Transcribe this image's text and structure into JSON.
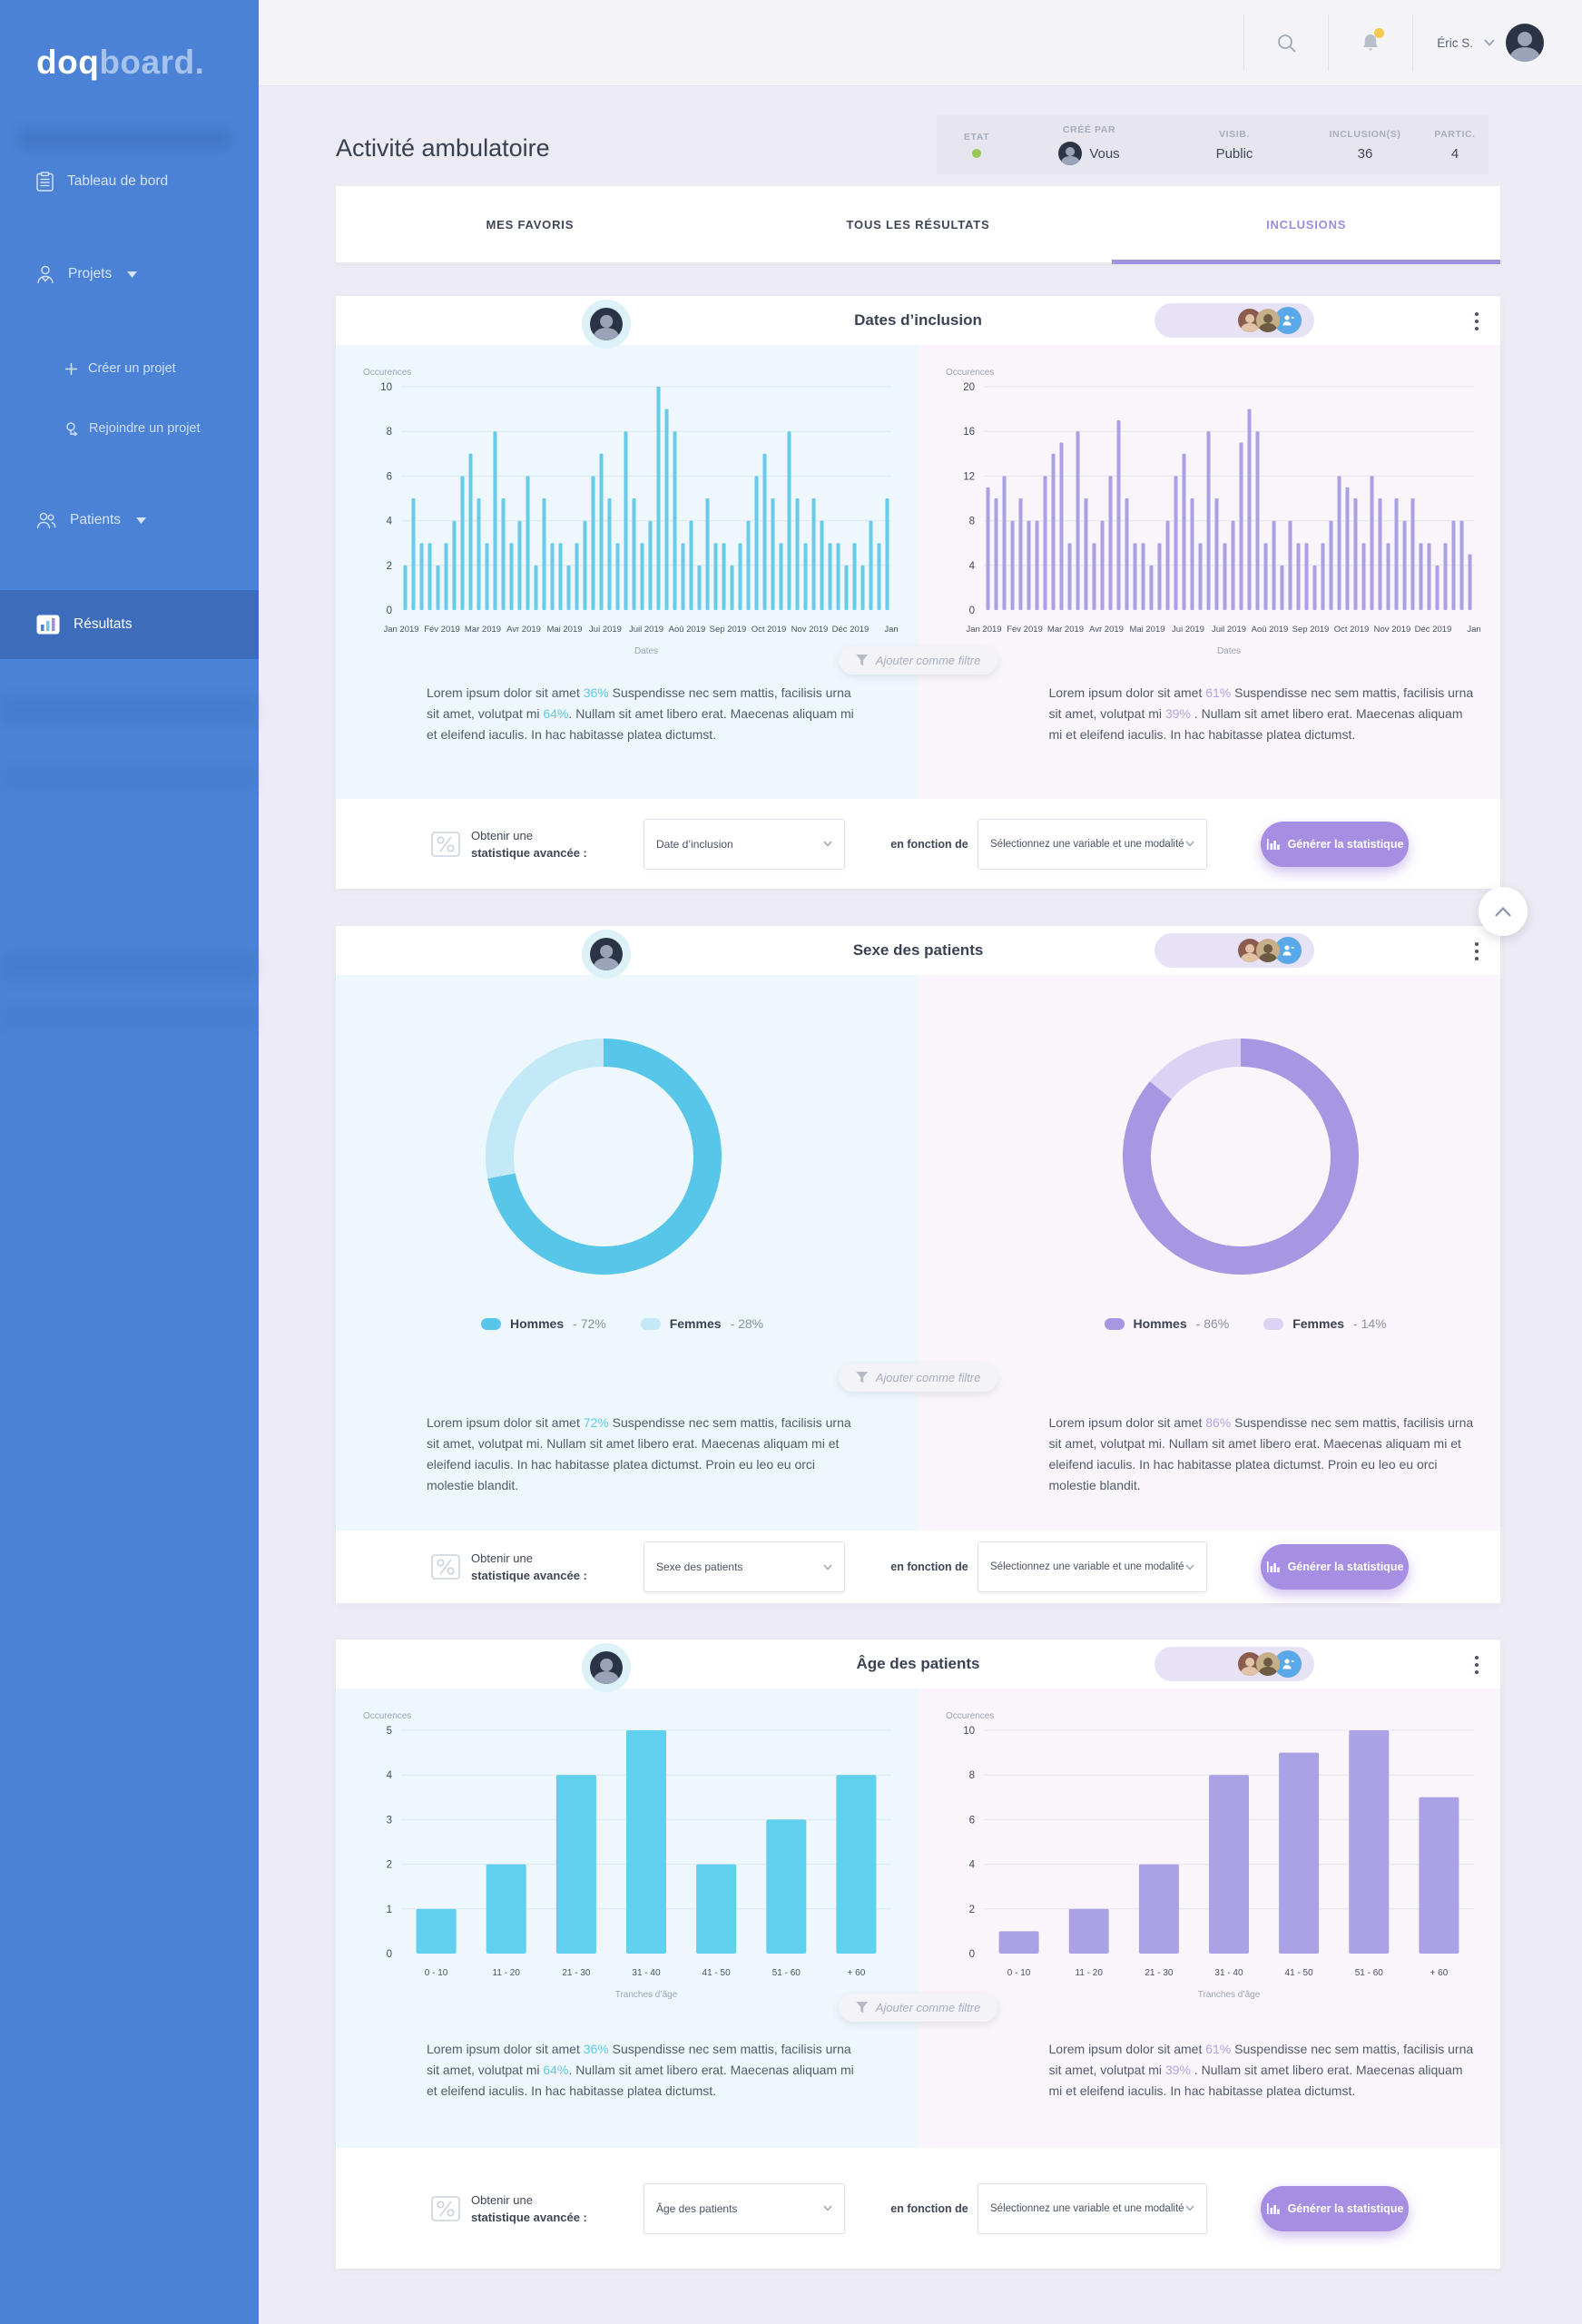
{
  "sidebar": {
    "logo": {
      "part1": "doq",
      "part2": "board."
    },
    "items": [
      {
        "label": "Tableau de bord"
      },
      {
        "label": "Projets"
      },
      {
        "label": "Créer un projet"
      },
      {
        "label": "Rejoindre un projet"
      },
      {
        "label": "Patients"
      },
      {
        "label": "Résultats"
      }
    ]
  },
  "topbar": {
    "user_name": "Éric S."
  },
  "page": {
    "title": "Activité ambulatoire"
  },
  "meta": [
    {
      "label": "ETAT",
      "value": ""
    },
    {
      "label": "CRÉÉ PAR",
      "value": "Vous"
    },
    {
      "label": "VISIB.",
      "value": "Public"
    },
    {
      "label": "INCLUSION(S)",
      "value": "36"
    },
    {
      "label": "PARTIC.",
      "value": "4"
    }
  ],
  "tabs": [
    {
      "label": "MES FAVORIS"
    },
    {
      "label": "TOUS LES RÉSULTATS"
    },
    {
      "label": "INCLUSIONS"
    }
  ],
  "cards": [
    {
      "title": "Dates d’inclusion",
      "filter_label": "Ajouter comme filtre",
      "left_text": [
        {
          "t": "Lorem ipsum dolor sit amet "
        },
        {
          "t": "36%",
          "hl": true
        },
        {
          "t": "  Suspendisse nec sem mattis, facilisis urna sit amet, volutpat mi "
        },
        {
          "t": "64%",
          "hl": true
        },
        {
          "t": ". Nullam sit amet libero erat. Maecenas aliquam mi et eleifend iaculis. In hac habitasse platea dictumst."
        }
      ],
      "right_text": [
        {
          "t": "Lorem ipsum dolor sit amet "
        },
        {
          "t": "61%",
          "hl": true
        },
        {
          "t": "  Suspendisse nec sem mattis, facilisis urna sit amet, volutpat mi "
        },
        {
          "t": "39%",
          "hl": true
        },
        {
          "t": " . Nullam sit amet libero erat. Maecenas aliquam mi et eleifend iaculis. In hac habitasse platea dictumst."
        }
      ],
      "foot": {
        "label1": "Obtenir une",
        "label2": "statistique avancée :",
        "select1": "Date d’inclusion",
        "between": "en fonction de",
        "select2": "Sélectionnez une variable et une modalité",
        "button": "Générer la statistique"
      }
    },
    {
      "title": "Sexe des patients",
      "filter_label": "Ajouter comme filtre",
      "legends": {
        "left": [
          {
            "name": "Hommes",
            "value": "- 72%"
          },
          {
            "name": "Femmes",
            "value": "- 28%"
          }
        ],
        "right": [
          {
            "name": "Hommes",
            "value": "- 86%"
          },
          {
            "name": "Femmes",
            "value": "- 14%"
          }
        ]
      },
      "left_text": [
        {
          "t": "Lorem ipsum dolor sit amet "
        },
        {
          "t": "72%",
          "hl": true
        },
        {
          "t": "  Suspendisse nec sem mattis, facilisis urna sit amet, volutpat mi. Nullam sit amet libero erat. Maecenas aliquam mi et eleifend iaculis. In hac habitasse platea dictumst. Proin eu leo eu orci molestie blandit."
        }
      ],
      "right_text": [
        {
          "t": "Lorem ipsum dolor sit amet "
        },
        {
          "t": "86%",
          "hl": true
        },
        {
          "t": "  Suspendisse nec sem mattis, facilisis urna sit amet, volutpat mi. Nullam sit amet libero erat. Maecenas aliquam mi et eleifend iaculis. In hac habitasse platea dictumst. Proin eu leo eu orci molestie blandit."
        }
      ],
      "foot": {
        "label1": "Obtenir une",
        "label2": "statistique avancée :",
        "select1": "Sexe des patients",
        "between": "en fonction de",
        "select2": "Sélectionnez une variable et une modalité",
        "button": "Générer la statistique"
      }
    },
    {
      "title": "Âge des patients",
      "filter_label": "Ajouter comme filtre",
      "left_text": [
        {
          "t": "Lorem ipsum dolor sit amet "
        },
        {
          "t": "36%",
          "hl": true
        },
        {
          "t": "  Suspendisse nec sem mattis, facilisis urna sit amet, volutpat mi "
        },
        {
          "t": "64%",
          "hl": true
        },
        {
          "t": ". Nullam sit amet libero erat. Maecenas aliquam mi et eleifend iaculis. In hac habitasse platea dictumst."
        }
      ],
      "right_text": [
        {
          "t": "Lorem ipsum dolor sit amet "
        },
        {
          "t": "61%",
          "hl": true
        },
        {
          "t": "  Suspendisse nec sem mattis, facilisis urna sit amet, volutpat mi "
        },
        {
          "t": "39%",
          "hl": true
        },
        {
          "t": " . Nullam sit amet libero erat. Maecenas aliquam mi et eleifend iaculis. In hac habitasse platea dictumst."
        }
      ],
      "foot": {
        "label1": "Obtenir une",
        "label2": "statistique avancée :",
        "select1": "Âge des patients",
        "between": "en fonction de",
        "select2": "Sélectionnez une variable et une modalité",
        "button": "Générer la statistique"
      }
    }
  ],
  "chart_data": [
    {
      "id": "dates-left",
      "type": "bar",
      "bar_style": "thin",
      "color": "#67cbe9",
      "ylabel": "Occurences",
      "xlabel": "Dates",
      "yticks": [
        0,
        2,
        4,
        6,
        8,
        10
      ],
      "ymax": 10,
      "x_labels": [
        "Jan 2019",
        "Fév 2019",
        "Mar 2019",
        "Avr 2019",
        "Mai 2019",
        "Jui 2019",
        "Juil 2019",
        "Aoû 2019",
        "Sep 2019",
        "Oct 2019",
        "Nov 2019",
        "Déc 2019",
        "Jan"
      ],
      "values": [
        2,
        5,
        3,
        3,
        2,
        3,
        4,
        6,
        7,
        5,
        3,
        8,
        5,
        3,
        4,
        6,
        2,
        5,
        3,
        3,
        2,
        3,
        4,
        6,
        7,
        5,
        3,
        8,
        5,
        3,
        4,
        10,
        9,
        8,
        3,
        4,
        2,
        5,
        3,
        3,
        2,
        3,
        4,
        6,
        7,
        5,
        3,
        8,
        5,
        3,
        5,
        4,
        3,
        3,
        2,
        3,
        2,
        4,
        3,
        5
      ]
    },
    {
      "id": "dates-right",
      "type": "bar",
      "bar_style": "thin",
      "color": "#aaa1e4",
      "ylabel": "Occurences",
      "xlabel": "Dates",
      "yticks": [
        0,
        4,
        8,
        12,
        16,
        20
      ],
      "ymax": 20,
      "x_labels": [
        "Jan 2019",
        "Fév 2019",
        "Mar 2019",
        "Avr 2019",
        "Mai 2019",
        "Jui 2019",
        "Juil 2019",
        "Aoû 2019",
        "Sep 2019",
        "Oct 2019",
        "Nov 2019",
        "Déc 2019",
        "Jan"
      ],
      "values": [
        11,
        10,
        12,
        8,
        10,
        8,
        8,
        12,
        14,
        15,
        6,
        16,
        10,
        6,
        8,
        12,
        17,
        10,
        6,
        6,
        4,
        6,
        8,
        12,
        14,
        10,
        6,
        16,
        10,
        6,
        8,
        15,
        18,
        16,
        6,
        8,
        4,
        8,
        6,
        6,
        4,
        6,
        8,
        12,
        11,
        10,
        6,
        12,
        10,
        6,
        10,
        8,
        10,
        6,
        6,
        4,
        6,
        8,
        8,
        5
      ]
    },
    {
      "id": "sexe-left",
      "type": "donut",
      "segments": [
        {
          "label": "Hommes",
          "pct": 72,
          "color": "#58c6e8"
        },
        {
          "label": "Femmes",
          "pct": 28,
          "color": "#c3e8f6"
        }
      ]
    },
    {
      "id": "sexe-right",
      "type": "donut",
      "segments": [
        {
          "label": "Hommes",
          "pct": 86,
          "color": "#a796e2"
        },
        {
          "label": "Femmes",
          "pct": 14,
          "color": "#dcd2f4"
        }
      ]
    },
    {
      "id": "age-left",
      "type": "bar",
      "bar_style": "wide",
      "color": "#5fd0ed",
      "ylabel": "Occurences",
      "xlabel": "Tranches d’âge",
      "yticks": [
        0,
        1,
        2,
        3,
        4,
        5
      ],
      "ymax": 5,
      "categories": [
        "0 - 10",
        "11 - 20",
        "21 - 30",
        "31 - 40",
        "41 - 50",
        "51 - 60",
        "+ 60"
      ],
      "values": [
        1,
        2,
        4,
        5,
        2,
        3,
        4
      ]
    },
    {
      "id": "age-right",
      "type": "bar",
      "bar_style": "wide",
      "color": "#aba2e5",
      "ylabel": "Occurences",
      "xlabel": "Tranches d’âge",
      "yticks": [
        0,
        2,
        4,
        6,
        8,
        10
      ],
      "ymax": 10,
      "categories": [
        "0 - 10",
        "11 - 20",
        "21 - 30",
        "31 - 40",
        "41 - 50",
        "51 - 60",
        "+ 60"
      ],
      "values": [
        1,
        2,
        4,
        8,
        9,
        10,
        7
      ]
    }
  ]
}
